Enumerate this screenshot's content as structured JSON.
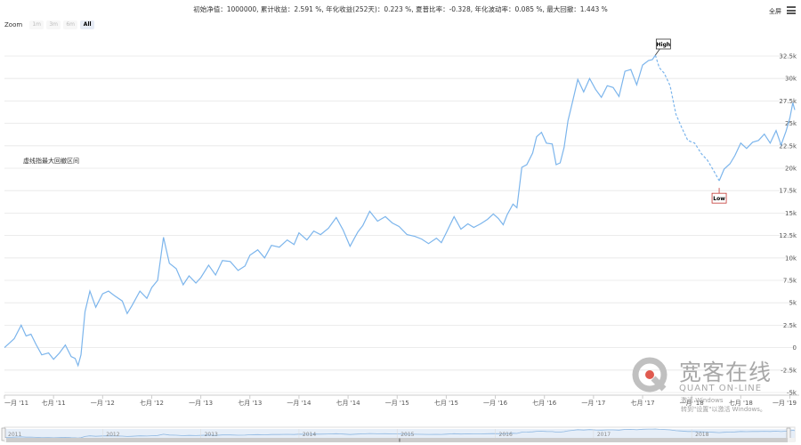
{
  "stats_text": "初始净值：1000000, 累计收益：2.591 %, 年化收益(252天)：0.223 %, 夏普比率：-0.328, 年化波动率：0.085 %, 最大回撤：1.443 %",
  "toolbar": {
    "fullscreen_label": "全屏",
    "zoom_label": "Zoom",
    "zoom_buttons": [
      {
        "label": "1m",
        "active": false
      },
      {
        "label": "3m",
        "active": false
      },
      {
        "label": "6m",
        "active": false
      },
      {
        "label": "All",
        "active": true
      }
    ]
  },
  "watermark": {
    "cn": "宽客在线",
    "en": "QUANT ON-LINE",
    "activate_line1": "激活 Windows",
    "activate_line2": "转到\"设置\"以激活 Windows。"
  },
  "colors": {
    "line": "#7cb5ec",
    "grid": "#e6e6e6",
    "flag_high_border": "#333333",
    "flag_low_border": "#c23531",
    "navigator_fill": "#c6dcf3"
  },
  "chart_data": {
    "type": "line",
    "series_label": "虚线指最大回撤区间",
    "y_axis": {
      "min": -5000,
      "max": 32500,
      "ticks": [
        "-5k",
        "-2.5k",
        "0",
        "2.5k",
        "5k",
        "7.5k",
        "10k",
        "12.5k",
        "15k",
        "17.5k",
        "20k",
        "22.5k",
        "25k",
        "27.5k",
        "30k",
        "32.5k"
      ]
    },
    "x_axis": {
      "start": 2011.0,
      "end": 2019.05,
      "ticks": [
        {
          "x": 2011.0,
          "label": "一月 '11"
        },
        {
          "x": 2011.5,
          "label": "七月 '11"
        },
        {
          "x": 2012.0,
          "label": "一月 '12"
        },
        {
          "x": 2012.5,
          "label": "七月 '12"
        },
        {
          "x": 2013.0,
          "label": "一月 '13"
        },
        {
          "x": 2013.5,
          "label": "七月 '13"
        },
        {
          "x": 2014.0,
          "label": "一月 '14"
        },
        {
          "x": 2014.5,
          "label": "七月 '14"
        },
        {
          "x": 2015.0,
          "label": "一月 '15"
        },
        {
          "x": 2015.5,
          "label": "七月 '15"
        },
        {
          "x": 2016.0,
          "label": "一月 '16"
        },
        {
          "x": 2016.5,
          "label": "七月 '16"
        },
        {
          "x": 2017.0,
          "label": "一月 '17"
        },
        {
          "x": 2017.5,
          "label": "七月 '17"
        },
        {
          "x": 2018.0,
          "label": "一月 '18"
        },
        {
          "x": 2018.5,
          "label": "七月 '18"
        },
        {
          "x": 2019.0,
          "label": "一月 '19"
        }
      ]
    },
    "navigator_years": [
      "2011",
      "2012",
      "2013",
      "2014",
      "2015",
      "2016",
      "2017",
      "2018"
    ],
    "flags": [
      {
        "label": "High",
        "x": 2017.63,
        "y": 32600
      },
      {
        "label": "Low",
        "x": 2018.28,
        "y": 17800
      }
    ],
    "points": [
      [
        2011.0,
        0
      ],
      [
        2011.05,
        500
      ],
      [
        2011.1,
        1000
      ],
      [
        2011.17,
        2500
      ],
      [
        2011.22,
        1300
      ],
      [
        2011.27,
        1500
      ],
      [
        2011.32,
        400
      ],
      [
        2011.38,
        -800
      ],
      [
        2011.45,
        -600
      ],
      [
        2011.5,
        -1300
      ],
      [
        2011.56,
        -600
      ],
      [
        2011.62,
        300
      ],
      [
        2011.68,
        -1000
      ],
      [
        2011.72,
        -1200
      ],
      [
        2011.75,
        -2000
      ],
      [
        2011.78,
        -800
      ],
      [
        2011.82,
        4000
      ],
      [
        2011.87,
        6300
      ],
      [
        2011.93,
        4500
      ],
      [
        2012.0,
        6000
      ],
      [
        2012.06,
        6300
      ],
      [
        2012.12,
        5800
      ],
      [
        2012.2,
        5200
      ],
      [
        2012.25,
        3800
      ],
      [
        2012.3,
        4700
      ],
      [
        2012.38,
        6300
      ],
      [
        2012.45,
        5500
      ],
      [
        2012.5,
        6700
      ],
      [
        2012.56,
        7500
      ],
      [
        2012.62,
        12300
      ],
      [
        2012.68,
        9400
      ],
      [
        2012.75,
        8800
      ],
      [
        2012.82,
        7000
      ],
      [
        2012.88,
        8000
      ],
      [
        2012.95,
        7200
      ],
      [
        2013.0,
        7800
      ],
      [
        2013.08,
        9200
      ],
      [
        2013.15,
        8100
      ],
      [
        2013.22,
        9700
      ],
      [
        2013.3,
        9600
      ],
      [
        2013.38,
        8600
      ],
      [
        2013.45,
        9100
      ],
      [
        2013.5,
        10300
      ],
      [
        2013.58,
        10900
      ],
      [
        2013.65,
        10000
      ],
      [
        2013.72,
        11400
      ],
      [
        2013.8,
        11200
      ],
      [
        2013.88,
        12000
      ],
      [
        2013.95,
        11500
      ],
      [
        2014.0,
        12800
      ],
      [
        2014.08,
        12000
      ],
      [
        2014.15,
        13000
      ],
      [
        2014.22,
        12600
      ],
      [
        2014.3,
        13300
      ],
      [
        2014.38,
        14500
      ],
      [
        2014.45,
        13100
      ],
      [
        2014.52,
        11300
      ],
      [
        2014.6,
        12900
      ],
      [
        2014.65,
        13600
      ],
      [
        2014.72,
        15200
      ],
      [
        2014.8,
        14100
      ],
      [
        2014.88,
        14600
      ],
      [
        2014.95,
        13900
      ],
      [
        2015.02,
        13500
      ],
      [
        2015.1,
        12600
      ],
      [
        2015.18,
        12400
      ],
      [
        2015.25,
        12100
      ],
      [
        2015.32,
        11600
      ],
      [
        2015.4,
        12200
      ],
      [
        2015.45,
        11700
      ],
      [
        2015.5,
        12800
      ],
      [
        2015.58,
        14600
      ],
      [
        2015.65,
        13200
      ],
      [
        2015.72,
        13800
      ],
      [
        2015.78,
        13400
      ],
      [
        2015.85,
        13800
      ],
      [
        2015.92,
        14300
      ],
      [
        2015.98,
        14900
      ],
      [
        2016.03,
        14400
      ],
      [
        2016.08,
        13700
      ],
      [
        2016.12,
        14800
      ],
      [
        2016.18,
        16000
      ],
      [
        2016.22,
        15600
      ],
      [
        2016.27,
        20100
      ],
      [
        2016.32,
        20400
      ],
      [
        2016.38,
        21700
      ],
      [
        2016.42,
        23500
      ],
      [
        2016.47,
        24000
      ],
      [
        2016.52,
        22800
      ],
      [
        2016.58,
        22700
      ],
      [
        2016.62,
        20400
      ],
      [
        2016.66,
        20600
      ],
      [
        2016.7,
        22300
      ],
      [
        2016.74,
        25300
      ],
      [
        2016.78,
        27100
      ],
      [
        2016.84,
        29900
      ],
      [
        2016.9,
        28500
      ],
      [
        2016.96,
        30000
      ],
      [
        2017.02,
        28800
      ],
      [
        2017.08,
        27900
      ],
      [
        2017.14,
        29200
      ],
      [
        2017.2,
        29000
      ],
      [
        2017.26,
        28000
      ],
      [
        2017.32,
        30800
      ],
      [
        2017.38,
        31000
      ],
      [
        2017.44,
        29300
      ],
      [
        2017.5,
        31500
      ],
      [
        2017.56,
        32000
      ],
      [
        2017.6,
        32100
      ],
      [
        2017.63,
        32600
      ],
      [
        2017.67,
        31200
      ],
      [
        2017.72,
        30600
      ],
      [
        2017.78,
        29200
      ],
      [
        2017.84,
        26000
      ],
      [
        2017.9,
        24500
      ],
      [
        2017.96,
        23100
      ],
      [
        2018.03,
        22800
      ],
      [
        2018.1,
        21600
      ],
      [
        2018.16,
        20900
      ],
      [
        2018.22,
        19800
      ],
      [
        2018.28,
        18600
      ],
      [
        2018.33,
        19900
      ],
      [
        2018.39,
        20500
      ],
      [
        2018.44,
        21400
      ],
      [
        2018.5,
        22800
      ],
      [
        2018.56,
        22200
      ],
      [
        2018.62,
        22900
      ],
      [
        2018.68,
        23100
      ],
      [
        2018.74,
        23800
      ],
      [
        2018.8,
        22800
      ],
      [
        2018.86,
        24200
      ],
      [
        2018.91,
        22600
      ],
      [
        2018.96,
        24100
      ],
      [
        2019.0,
        25600
      ],
      [
        2019.03,
        27300
      ],
      [
        2019.05,
        26500
      ]
    ]
  }
}
